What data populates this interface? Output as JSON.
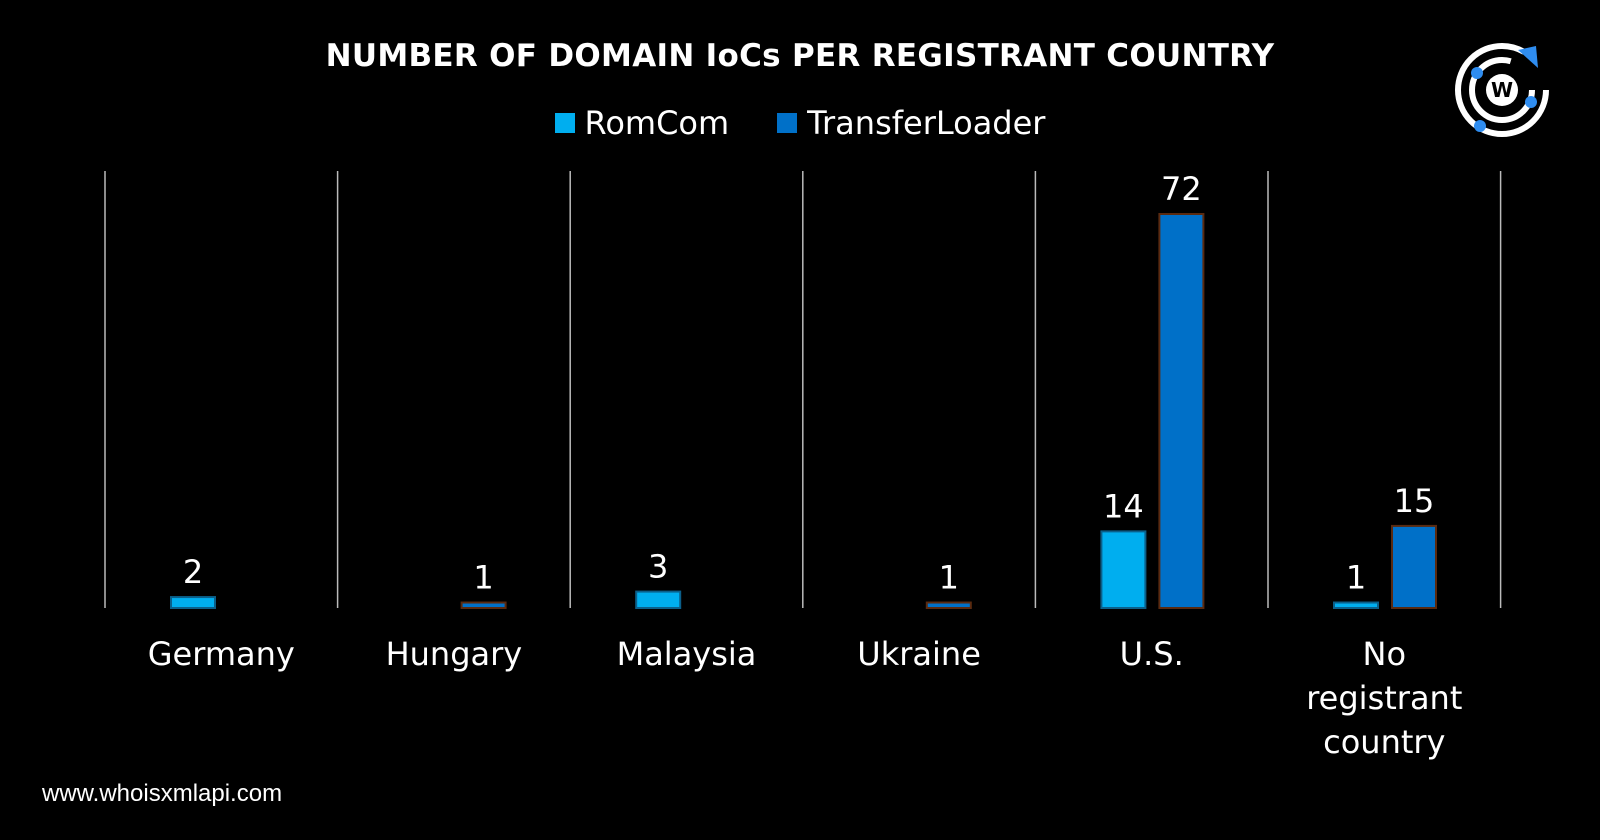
{
  "chart_data": {
    "type": "bar",
    "title": "NUMBER OF DOMAIN IoCs PER REGISTRANT COUNTRY",
    "categories": [
      "Germany",
      "Hungary",
      "Malaysia",
      "Ukraine",
      "U.S.",
      "No registrant country"
    ],
    "series": [
      {
        "name": "RomCom",
        "color": "#00aeef",
        "values": [
          2,
          null,
          3,
          null,
          14,
          1
        ]
      },
      {
        "name": "TransferLoader",
        "color": "#0070c8",
        "values": [
          null,
          1,
          null,
          1,
          72,
          15
        ]
      }
    ],
    "xlabel": "",
    "ylabel": "",
    "ylim": [
      0,
      72
    ],
    "grid": "vertical separators",
    "legend_position": "top-center"
  },
  "footer": "www.whoisxmlapi.com",
  "logo_text": "W"
}
